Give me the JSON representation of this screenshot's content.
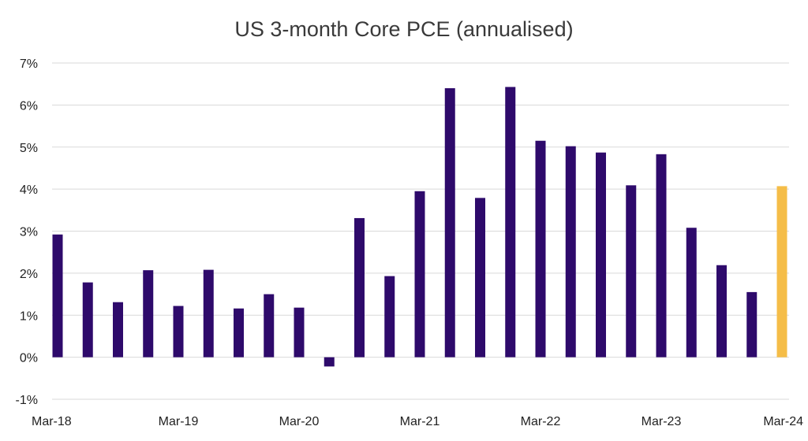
{
  "chart_data": {
    "type": "bar",
    "title": "US 3-month Core PCE (annualised)",
    "xlabel": "",
    "ylabel": "",
    "ylim": [
      -1,
      7
    ],
    "y_ticks": [
      "-1%",
      "0%",
      "1%",
      "2%",
      "3%",
      "4%",
      "5%",
      "6%",
      "7%"
    ],
    "y_tick_values": [
      -1,
      0,
      1,
      2,
      3,
      4,
      5,
      6,
      7
    ],
    "x_tick_labels": [
      "Mar-18",
      "Mar-19",
      "Mar-20",
      "Mar-21",
      "Mar-22",
      "Mar-23",
      "Mar-24"
    ],
    "categories": [
      "Mar-18",
      "Jun-18",
      "Sep-18",
      "Dec-18",
      "Mar-19",
      "Jun-19",
      "Sep-19",
      "Dec-19",
      "Mar-20",
      "Jun-20",
      "Sep-20",
      "Dec-20",
      "Mar-21",
      "Jun-21",
      "Sep-21",
      "Dec-21",
      "Mar-22",
      "Jun-22",
      "Sep-22",
      "Dec-22",
      "Mar-23",
      "Jun-23",
      "Sep-23",
      "Dec-23",
      "Mar-24"
    ],
    "values": [
      2.92,
      1.78,
      1.31,
      2.07,
      1.22,
      2.08,
      1.16,
      1.5,
      1.18,
      -0.22,
      3.31,
      1.93,
      3.95,
      6.4,
      3.79,
      6.43,
      5.15,
      5.02,
      4.87,
      4.09,
      4.83,
      3.08,
      2.19,
      1.55,
      4.07
    ],
    "colors": {
      "bar": "#2e0a6b",
      "highlight": "#f5bd48",
      "grid": "#d9d9d9"
    },
    "highlight_index": 24,
    "grid": true,
    "legend": "none"
  }
}
